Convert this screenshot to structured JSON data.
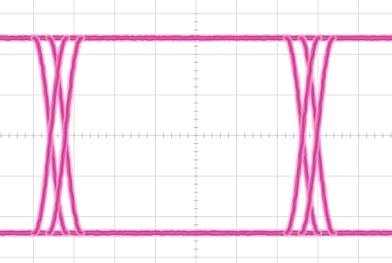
{
  "chart_data": {
    "type": "line",
    "title": "",
    "xlabel": "",
    "ylabel": "",
    "x_divisions": 10,
    "y_divisions": 6,
    "xlim": [
      0,
      10
    ],
    "ylim": [
      0,
      6
    ],
    "grid": true,
    "minor_ticks_per_division": 5,
    "crossings_x": [
      1.6,
      7.8
    ],
    "levels": {
      "high": 5.4,
      "low": 0.6
    },
    "series": [
      {
        "values": [
          [
            0,
            5.4
          ],
          [
            10,
            5.4
          ]
        ]
      },
      {
        "values": [
          [
            0,
            0.6
          ],
          [
            10,
            0.6
          ]
        ]
      },
      {
        "values": [
          [
            1.2,
            5.4
          ],
          [
            1.6,
            3.0
          ],
          [
            2.0,
            0.6
          ]
        ]
      },
      {
        "values": [
          [
            1.2,
            0.6
          ],
          [
            1.6,
            3.0
          ],
          [
            2.0,
            5.4
          ]
        ]
      },
      {
        "values": [
          [
            7.4,
            5.4
          ],
          [
            7.8,
            3.0
          ],
          [
            8.2,
            0.6
          ]
        ]
      },
      {
        "values": [
          [
            7.4,
            0.6
          ],
          [
            7.8,
            3.0
          ],
          [
            8.2,
            5.4
          ]
        ]
      }
    ]
  },
  "colors": {
    "background": "#ffffff",
    "grid": "#d8d8d8",
    "grid_ticks": "#b8b8b8",
    "trace": "#e255a8",
    "trace_dark": "#b72e7e",
    "trace_light": "#f5a9d6"
  }
}
